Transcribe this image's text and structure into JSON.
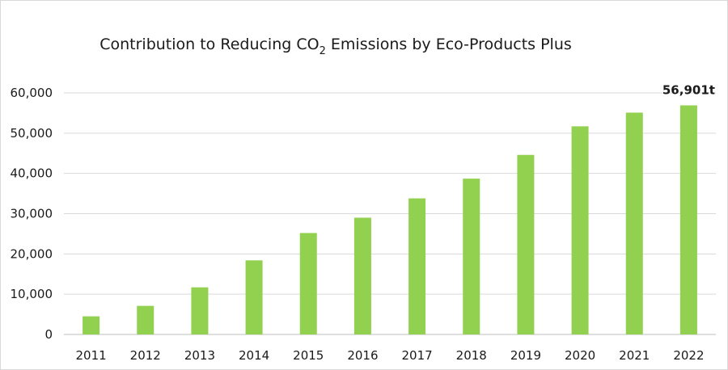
{
  "chart_data": {
    "type": "bar",
    "title_main": "Contribution to Reducing CO",
    "title_sub": "2",
    "title_rest": " Emissions by Eco-Products Plus",
    "categories": [
      "2011",
      "2012",
      "2013",
      "2014",
      "2015",
      "2016",
      "2017",
      "2018",
      "2019",
      "2020",
      "2021",
      "2022"
    ],
    "values": [
      4500,
      7100,
      11700,
      18400,
      25200,
      29000,
      33800,
      38700,
      44600,
      51700,
      55100,
      56901
    ],
    "data_labels": [
      {
        "index": 11,
        "text": "56,901t"
      }
    ],
    "yticks": [
      "0",
      "10,000",
      "20,000",
      "30,000",
      "40,000",
      "50,000",
      "60,000"
    ],
    "ylim": [
      0,
      60000
    ],
    "grid": true,
    "colors": {
      "bar": "#92d050",
      "grid": "#d9d9d9"
    }
  }
}
